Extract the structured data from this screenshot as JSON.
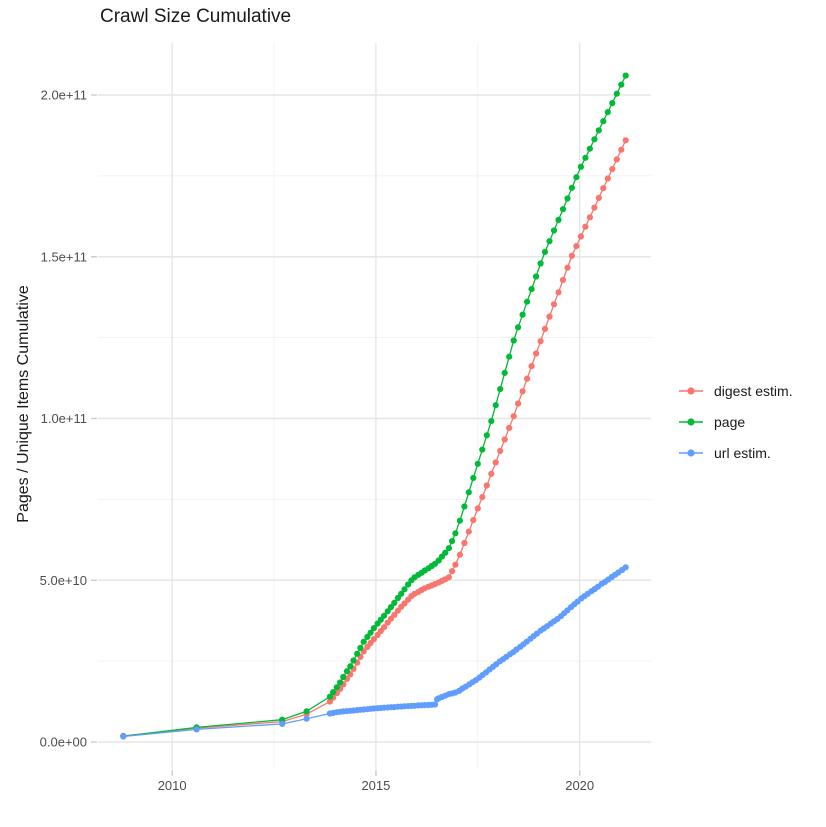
{
  "title": "Crawl Size Cumulative",
  "y_axis": {
    "title": "Pages / Unique Items Cumulative",
    "tick_labels": [
      "0.0e+00",
      "5.0e+10",
      "1.0e+11",
      "1.5e+11",
      "2.0e+11"
    ],
    "tick_values_e9": [
      0,
      50,
      100,
      150,
      200
    ],
    "minor_values_e9": [
      25,
      75,
      125,
      175
    ]
  },
  "x_axis": {
    "tick_labels": [
      "2010",
      "2015",
      "2020"
    ],
    "tick_values": [
      2010,
      2015,
      2020
    ],
    "minor_values": [
      2012.5,
      2017.5
    ]
  },
  "legend": {
    "items": [
      {
        "label": "digest estim.",
        "color": "#F8766D"
      },
      {
        "label": "page",
        "color": "#00BA38"
      },
      {
        "label": "url estim.",
        "color": "#619CFF"
      }
    ]
  },
  "colors": {
    "grid_major": "#e6e6e6",
    "grid_minor": "#efefef",
    "axis_tick": "#cccccc",
    "tick_label": "#4d4d4d"
  },
  "chart_data": {
    "type": "line",
    "title": "Crawl Size Cumulative",
    "xlabel": "",
    "ylabel": "Pages / Unique Items Cumulative",
    "y_unit": "pages (value x 1e9)",
    "xlim": [
      2008.18,
      2021.75
    ],
    "ylim_e9": [
      -8,
      216
    ],
    "grid": true,
    "legend_position": "right",
    "marker": "point",
    "series": [
      {
        "name": "digest estim.",
        "color": "#F8766D",
        "points": [
          [
            2008.8,
            1.9
          ],
          [
            2010.6,
            4.3
          ],
          [
            2012.7,
            6.3
          ],
          [
            2013.3,
            8.6
          ],
          [
            2013.87,
            12.5
          ],
          [
            2013.95,
            13.7
          ],
          [
            2014.04,
            15.1
          ],
          [
            2014.12,
            16.4
          ],
          [
            2014.2,
            17.8
          ],
          [
            2014.29,
            19.5
          ],
          [
            2014.37,
            20.9
          ],
          [
            2014.45,
            22.6
          ],
          [
            2014.54,
            24.5
          ],
          [
            2014.62,
            26.3
          ],
          [
            2014.7,
            28
          ],
          [
            2014.79,
            29.4
          ],
          [
            2014.87,
            30.6
          ],
          [
            2014.95,
            31.8
          ],
          [
            2015.04,
            33.1
          ],
          [
            2015.12,
            34.3
          ],
          [
            2015.2,
            35.5
          ],
          [
            2015.29,
            36.9
          ],
          [
            2015.37,
            38.1
          ],
          [
            2015.45,
            39.3
          ],
          [
            2015.54,
            40.6
          ],
          [
            2015.62,
            41.8
          ],
          [
            2015.7,
            42.8
          ],
          [
            2015.79,
            44
          ],
          [
            2015.87,
            45.1
          ],
          [
            2015.95,
            45.8
          ],
          [
            2016.04,
            46.4
          ],
          [
            2016.12,
            47
          ],
          [
            2016.2,
            47.5
          ],
          [
            2016.29,
            48
          ],
          [
            2016.37,
            48.4
          ],
          [
            2016.45,
            48.8
          ],
          [
            2016.54,
            49.3
          ],
          [
            2016.62,
            49.8
          ],
          [
            2016.7,
            50.3
          ],
          [
            2016.79,
            50.9
          ],
          [
            2016.87,
            52.8
          ],
          [
            2016.95,
            54.8
          ],
          [
            2017.06,
            57.9
          ],
          [
            2017.17,
            61.5
          ],
          [
            2017.28,
            65
          ],
          [
            2017.39,
            68.6
          ],
          [
            2017.5,
            72.2
          ],
          [
            2017.61,
            75.7
          ],
          [
            2017.72,
            79.3
          ],
          [
            2017.83,
            82.9
          ],
          [
            2017.94,
            86.4
          ],
          [
            2018.05,
            90
          ],
          [
            2018.16,
            93.5
          ],
          [
            2018.27,
            97.1
          ],
          [
            2018.38,
            100.7
          ],
          [
            2018.49,
            104.6
          ],
          [
            2018.6,
            108.4
          ],
          [
            2018.71,
            112.3
          ],
          [
            2018.82,
            116.2
          ],
          [
            2018.93,
            120.1
          ],
          [
            2019.04,
            123.9
          ],
          [
            2019.15,
            127.7
          ],
          [
            2019.26,
            131.5
          ],
          [
            2019.37,
            135.3
          ],
          [
            2019.48,
            139
          ],
          [
            2019.59,
            142.8
          ],
          [
            2019.7,
            146.6
          ],
          [
            2019.81,
            150.3
          ],
          [
            2019.92,
            153.3
          ],
          [
            2020.03,
            156.3
          ],
          [
            2020.14,
            159.3
          ],
          [
            2020.25,
            162.2
          ],
          [
            2020.36,
            165.2
          ],
          [
            2020.47,
            168.2
          ],
          [
            2020.58,
            171.2
          ],
          [
            2020.69,
            174.2
          ],
          [
            2020.8,
            177.1
          ],
          [
            2020.91,
            180.1
          ],
          [
            2021.02,
            183.1
          ],
          [
            2021.13,
            186
          ]
        ]
      },
      {
        "name": "page",
        "color": "#00BA38",
        "points": [
          [
            2008.8,
            1.8
          ],
          [
            2010.6,
            4.5
          ],
          [
            2012.7,
            6.9
          ],
          [
            2013.3,
            9.5
          ],
          [
            2013.87,
            14
          ],
          [
            2013.95,
            15.4
          ],
          [
            2014.04,
            16.9
          ],
          [
            2014.12,
            18.4
          ],
          [
            2014.2,
            20.1
          ],
          [
            2014.29,
            21.9
          ],
          [
            2014.37,
            23.4
          ],
          [
            2014.45,
            25.2
          ],
          [
            2014.54,
            27.3
          ],
          [
            2014.62,
            29.1
          ],
          [
            2014.7,
            31
          ],
          [
            2014.79,
            32.5
          ],
          [
            2014.87,
            33.8
          ],
          [
            2014.95,
            35.2
          ],
          [
            2015.04,
            36.6
          ],
          [
            2015.12,
            37.8
          ],
          [
            2015.2,
            39
          ],
          [
            2015.29,
            40.4
          ],
          [
            2015.37,
            41.7
          ],
          [
            2015.45,
            43
          ],
          [
            2015.54,
            44.5
          ],
          [
            2015.62,
            45.8
          ],
          [
            2015.7,
            47.2
          ],
          [
            2015.79,
            48.7
          ],
          [
            2015.87,
            50
          ],
          [
            2015.95,
            50.9
          ],
          [
            2016.04,
            51.7
          ],
          [
            2016.12,
            52.3
          ],
          [
            2016.2,
            53
          ],
          [
            2016.29,
            53.7
          ],
          [
            2016.37,
            54.4
          ],
          [
            2016.45,
            55.1
          ],
          [
            2016.54,
            56.1
          ],
          [
            2016.62,
            57.3
          ],
          [
            2016.7,
            58.5
          ],
          [
            2016.79,
            59.9
          ],
          [
            2016.87,
            62.1
          ],
          [
            2016.95,
            64.5
          ],
          [
            2017.06,
            68.4
          ],
          [
            2017.17,
            72.8
          ],
          [
            2017.28,
            77.2
          ],
          [
            2017.39,
            81.6
          ],
          [
            2017.5,
            86
          ],
          [
            2017.61,
            90.4
          ],
          [
            2017.72,
            94.8
          ],
          [
            2017.83,
            99.2
          ],
          [
            2017.94,
            104.1
          ],
          [
            2018.05,
            109.1
          ],
          [
            2018.16,
            114.1
          ],
          [
            2018.27,
            119.1
          ],
          [
            2018.38,
            124.1
          ],
          [
            2018.49,
            128.2
          ],
          [
            2018.6,
            132.1
          ],
          [
            2018.71,
            136.1
          ],
          [
            2018.82,
            140
          ],
          [
            2018.93,
            143.9
          ],
          [
            2019.04,
            147.9
          ],
          [
            2019.15,
            151.5
          ],
          [
            2019.26,
            154.8
          ],
          [
            2019.37,
            158.1
          ],
          [
            2019.48,
            161.4
          ],
          [
            2019.59,
            164.7
          ],
          [
            2019.7,
            168
          ],
          [
            2019.81,
            171.3
          ],
          [
            2019.92,
            174.6
          ],
          [
            2020.03,
            177.8
          ],
          [
            2020.14,
            180.6
          ],
          [
            2020.25,
            183.4
          ],
          [
            2020.36,
            186.3
          ],
          [
            2020.47,
            189.1
          ],
          [
            2020.58,
            191.9
          ],
          [
            2020.69,
            194.7
          ],
          [
            2020.8,
            197.5
          ],
          [
            2020.91,
            200.4
          ],
          [
            2021.02,
            203.2
          ],
          [
            2021.13,
            206
          ]
        ]
      },
      {
        "name": "url estim.",
        "color": "#619CFF",
        "points": [
          [
            2008.8,
            1.7
          ],
          [
            2010.6,
            3.9
          ],
          [
            2012.7,
            5.6
          ],
          [
            2013.3,
            7.2
          ],
          [
            2013.87,
            8.8
          ],
          [
            2013.95,
            9
          ],
          [
            2014.04,
            9.2
          ],
          [
            2014.12,
            9.35
          ],
          [
            2014.2,
            9.45
          ],
          [
            2014.29,
            9.55
          ],
          [
            2014.37,
            9.65
          ],
          [
            2014.45,
            9.75
          ],
          [
            2014.54,
            9.85
          ],
          [
            2014.62,
            9.95
          ],
          [
            2014.7,
            10.05
          ],
          [
            2014.79,
            10.15
          ],
          [
            2014.87,
            10.25
          ],
          [
            2014.95,
            10.35
          ],
          [
            2015.04,
            10.45
          ],
          [
            2015.12,
            10.5
          ],
          [
            2015.2,
            10.6
          ],
          [
            2015.29,
            10.65
          ],
          [
            2015.37,
            10.75
          ],
          [
            2015.45,
            10.8
          ],
          [
            2015.54,
            10.9
          ],
          [
            2015.62,
            10.95
          ],
          [
            2015.7,
            11.05
          ],
          [
            2015.79,
            11.1
          ],
          [
            2015.87,
            11.15
          ],
          [
            2015.95,
            11.2
          ],
          [
            2016.04,
            11.3
          ],
          [
            2016.12,
            11.35
          ],
          [
            2016.2,
            11.4
          ],
          [
            2016.29,
            11.45
          ],
          [
            2016.37,
            11.5
          ],
          [
            2016.45,
            11.6
          ],
          [
            2016.5,
            13.2
          ],
          [
            2016.54,
            13.5
          ],
          [
            2016.62,
            13.9
          ],
          [
            2016.7,
            14.3
          ],
          [
            2016.79,
            14.8
          ],
          [
            2016.87,
            15
          ],
          [
            2016.95,
            15.3
          ],
          [
            2017.04,
            15.8
          ],
          [
            2017.12,
            16.5
          ],
          [
            2017.2,
            17.1
          ],
          [
            2017.29,
            17.8
          ],
          [
            2017.37,
            18.5
          ],
          [
            2017.45,
            19.1
          ],
          [
            2017.54,
            19.9
          ],
          [
            2017.62,
            20.7
          ],
          [
            2017.7,
            21.5
          ],
          [
            2017.79,
            22.4
          ],
          [
            2017.87,
            23.2
          ],
          [
            2017.95,
            24
          ],
          [
            2018.04,
            24.9
          ],
          [
            2018.12,
            25.6
          ],
          [
            2018.2,
            26.3
          ],
          [
            2018.29,
            27.1
          ],
          [
            2018.37,
            27.8
          ],
          [
            2018.45,
            28.6
          ],
          [
            2018.54,
            29.4
          ],
          [
            2018.62,
            30.2
          ],
          [
            2018.7,
            31
          ],
          [
            2018.79,
            31.9
          ],
          [
            2018.87,
            32.7
          ],
          [
            2018.95,
            33.5
          ],
          [
            2019.04,
            34.4
          ],
          [
            2019.12,
            35.1
          ],
          [
            2019.2,
            35.8
          ],
          [
            2019.29,
            36.6
          ],
          [
            2019.37,
            37.3
          ],
          [
            2019.45,
            38
          ],
          [
            2019.54,
            38.9
          ],
          [
            2019.62,
            39.8
          ],
          [
            2019.7,
            40.7
          ],
          [
            2019.79,
            41.7
          ],
          [
            2019.87,
            42.6
          ],
          [
            2019.95,
            43.4
          ],
          [
            2020.04,
            44.4
          ],
          [
            2020.12,
            45.1
          ],
          [
            2020.2,
            45.8
          ],
          [
            2020.29,
            46.6
          ],
          [
            2020.37,
            47.3
          ],
          [
            2020.45,
            48
          ],
          [
            2020.54,
            48.9
          ],
          [
            2020.62,
            49.5
          ],
          [
            2020.7,
            50.2
          ],
          [
            2020.79,
            51
          ],
          [
            2020.87,
            51.7
          ],
          [
            2020.95,
            52.4
          ],
          [
            2021.04,
            53.2
          ],
          [
            2021.13,
            54
          ]
        ]
      }
    ]
  }
}
